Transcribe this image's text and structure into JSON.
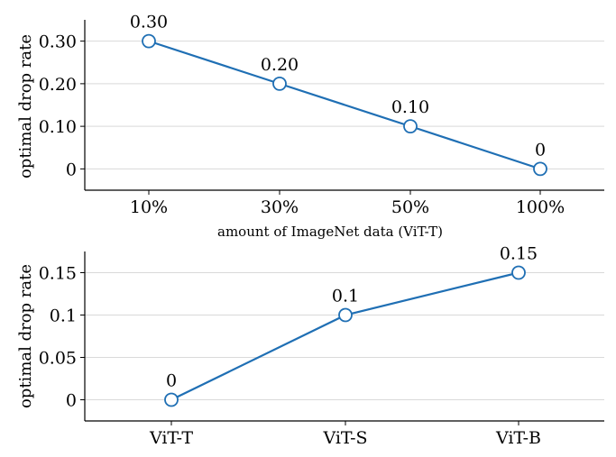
{
  "colors": {
    "series": "#1f6fb4",
    "grid": "#d9d9d9",
    "axis": "#000000"
  },
  "chart_data": [
    {
      "type": "line",
      "categories": [
        "10%",
        "30%",
        "50%",
        "100%"
      ],
      "values": [
        0.3,
        0.2,
        0.1,
        0
      ],
      "data_labels": [
        "0.30",
        "0.20",
        "0.10",
        "0"
      ],
      "xlabel": "amount of ImageNet data (ViT-T)",
      "ylabel": "optimal drop rate",
      "ylim": [
        -0.05,
        0.35
      ],
      "yticks": [
        0,
        0.1,
        0.2,
        0.3
      ],
      "ytick_labels": [
        "0",
        "0.10",
        "0.20",
        "0.30"
      ],
      "grid": "horizontal",
      "marker": "open-circle"
    },
    {
      "type": "line",
      "categories": [
        "ViT-T",
        "ViT-S",
        "ViT-B"
      ],
      "values": [
        0,
        0.1,
        0.15
      ],
      "data_labels": [
        "0",
        "0.1",
        "0.15"
      ],
      "xlabel": "",
      "ylabel": "optimal drop rate",
      "ylim": [
        -0.025,
        0.175
      ],
      "yticks": [
        0,
        0.05,
        0.1,
        0.15
      ],
      "ytick_labels": [
        "0",
        "0.05",
        "0.1",
        "0.15"
      ],
      "grid": "horizontal",
      "marker": "open-circle"
    }
  ]
}
